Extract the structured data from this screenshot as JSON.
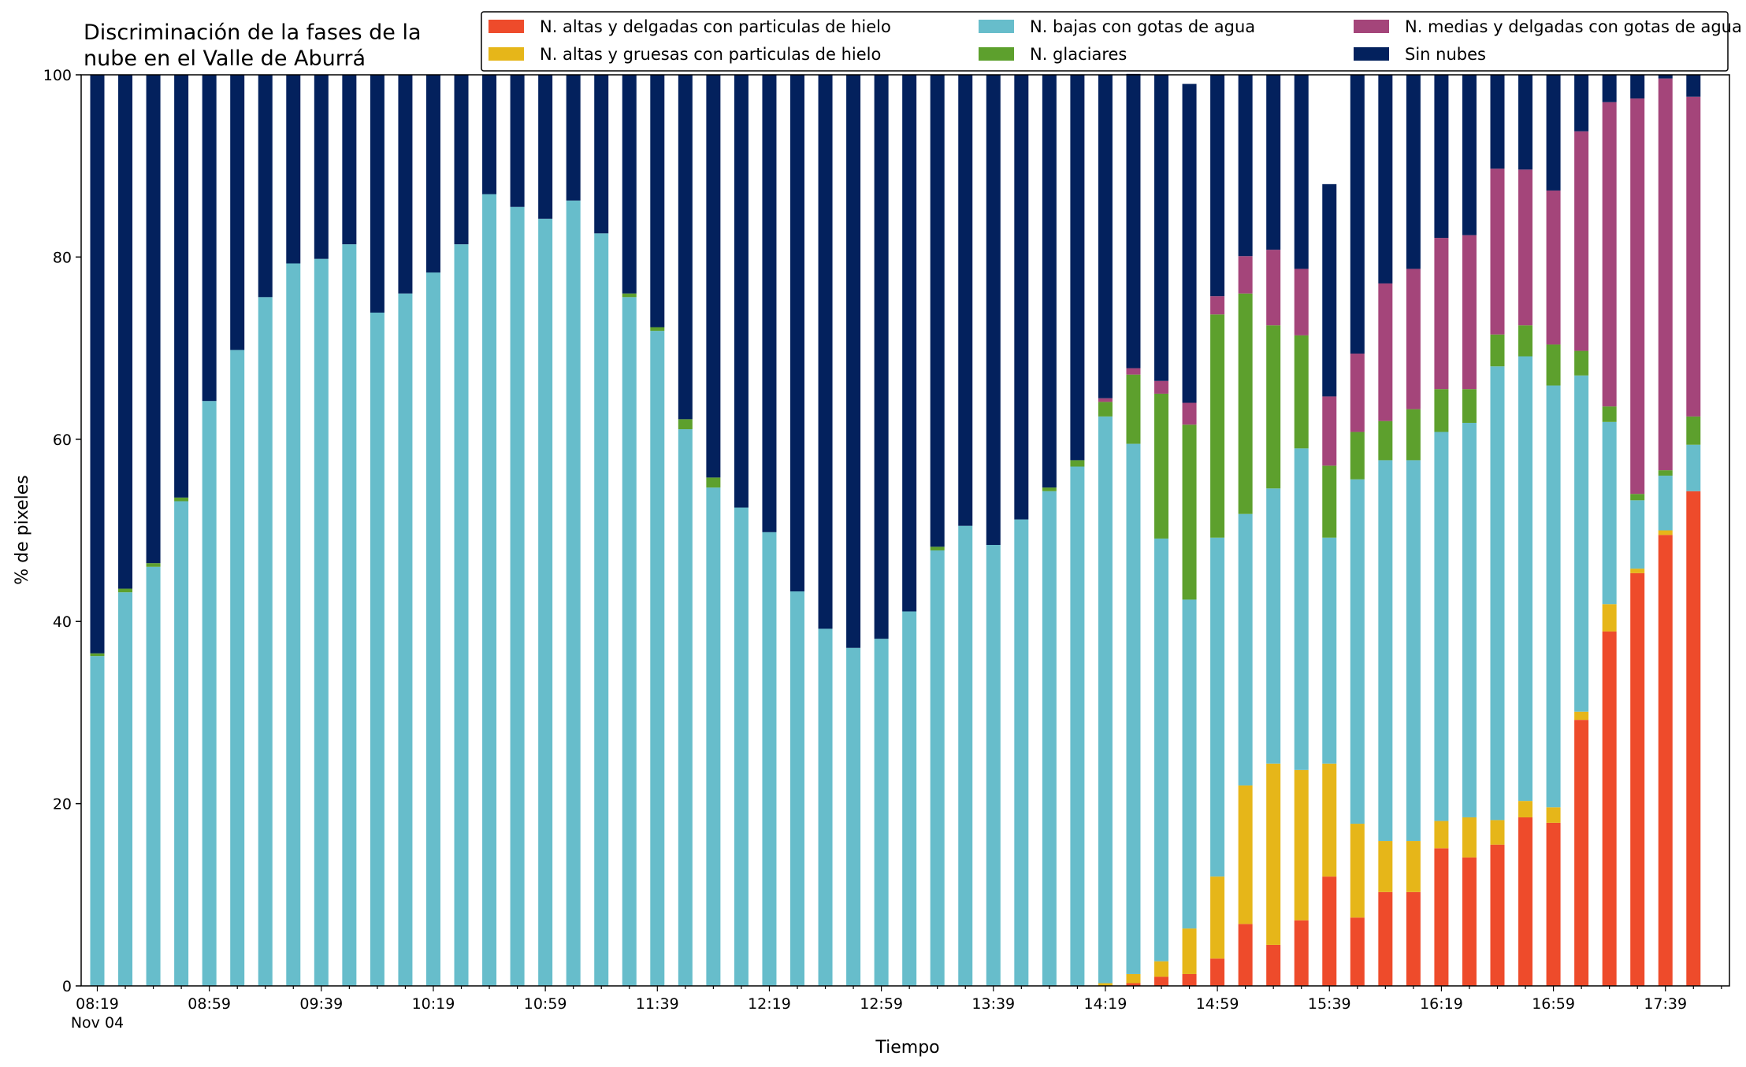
{
  "chart_data": {
    "type": "bar",
    "stacked": true,
    "title_lines": [
      "Discriminación de la fases de la",
      "nube en el Valle de Aburrá"
    ],
    "xlabel": "Tiempo",
    "ylabel": "% de pixeles",
    "ylim": [
      0,
      100
    ],
    "yticks": [
      0,
      20,
      40,
      60,
      80,
      100
    ],
    "grid": false,
    "legend_position": "top-right",
    "time_start": "08:19",
    "interval_minutes": 10,
    "x_tick_labels": [
      {
        "index": 0,
        "label": "08:19",
        "sublabel": "Nov 04"
      },
      {
        "index": 4,
        "label": "08:59"
      },
      {
        "index": 8,
        "label": "09:39"
      },
      {
        "index": 12,
        "label": "10:19"
      },
      {
        "index": 16,
        "label": "10:59"
      },
      {
        "index": 20,
        "label": "11:39"
      },
      {
        "index": 24,
        "label": "12:19"
      },
      {
        "index": 28,
        "label": "12:59"
      },
      {
        "index": 32,
        "label": "13:39"
      },
      {
        "index": 36,
        "label": "14:19"
      },
      {
        "index": 40,
        "label": "14:59"
      },
      {
        "index": 44,
        "label": "15:39"
      },
      {
        "index": 48,
        "label": "16:19"
      },
      {
        "index": 52,
        "label": "16:59"
      },
      {
        "index": 56,
        "label": "17:39"
      }
    ],
    "series": [
      {
        "name": "N. altas y delgadas con particulas de hielo",
        "color": "#ee4b2b",
        "values": [
          0,
          0,
          0,
          0,
          0,
          0,
          0,
          0,
          0,
          0,
          0,
          0,
          0,
          0,
          0,
          0,
          0,
          0,
          0,
          0,
          0,
          0,
          0,
          0,
          0,
          0,
          0,
          0,
          0,
          0,
          0,
          0,
          0,
          0,
          0,
          0,
          0,
          0.3,
          1,
          1.3,
          3,
          6.8,
          4.5,
          7.2,
          12,
          7.5,
          10.3,
          10.3,
          15.1,
          14.1,
          15.5,
          18.5,
          17.9,
          29.2,
          38.9,
          45.3,
          49.5,
          54.3
        ]
      },
      {
        "name": "N. altas y gruesas con particulas de hielo",
        "color": "#e6b619",
        "values": [
          0,
          0,
          0,
          0,
          0,
          0,
          0,
          0,
          0,
          0,
          0,
          0,
          0,
          0,
          0,
          0,
          0,
          0,
          0,
          0,
          0,
          0,
          0,
          0,
          0,
          0,
          0,
          0,
          0,
          0,
          0,
          0,
          0,
          0,
          0,
          0,
          0.3,
          1,
          1.7,
          5,
          9,
          15.2,
          19.9,
          16.5,
          12.4,
          10.3,
          5.6,
          5.6,
          3,
          4.4,
          2.7,
          1.8,
          1.7,
          0.9,
          3,
          0.5,
          0.5,
          0
        ]
      },
      {
        "name": "N. bajas con gotas de agua",
        "color": "#67bdcb",
        "values": [
          36.2,
          43.2,
          46,
          53.2,
          64.2,
          69.8,
          75.6,
          79.3,
          79.8,
          81.4,
          73.9,
          76,
          78.3,
          81.4,
          86.9,
          85.5,
          84.2,
          86.2,
          82.6,
          75.6,
          71.9,
          61.1,
          54.7,
          52.5,
          49.8,
          43.3,
          39.2,
          37.1,
          38.1,
          41.1,
          47.8,
          50.5,
          48.4,
          51.2,
          54.3,
          57,
          62.2,
          58.2,
          46.4,
          36.1,
          37.2,
          29.8,
          30.2,
          35.3,
          24.8,
          37.8,
          41.8,
          41.8,
          42.7,
          43.3,
          49.8,
          48.8,
          46.3,
          36.9,
          20,
          7.5,
          6,
          5.1
        ]
      },
      {
        "name": "N. glaciares",
        "color": "#5da02d",
        "values": [
          0.3,
          0.4,
          0.4,
          0.4,
          0,
          0,
          0,
          0,
          0,
          0,
          0,
          0,
          0,
          0,
          0,
          0,
          0,
          0,
          0,
          0.4,
          0.4,
          1.1,
          1.1,
          0,
          0,
          0,
          0,
          0,
          0,
          0,
          0.4,
          0,
          0,
          0,
          0.4,
          0.7,
          1.6,
          7.6,
          15.9,
          19.2,
          24.5,
          24.2,
          17.9,
          12.4,
          7.9,
          5.2,
          4.3,
          5.6,
          4.7,
          3.7,
          3.5,
          3.4,
          4.5,
          2.7,
          1.7,
          0.7,
          0.6,
          3.1
        ]
      },
      {
        "name": "N. medias y delgadas con gotas de agua",
        "color": "#a4457a",
        "values": [
          0,
          0,
          0,
          0,
          0,
          0,
          0,
          0,
          0,
          0,
          0,
          0,
          0,
          0,
          0,
          0,
          0,
          0,
          0,
          0,
          0,
          0,
          0,
          0,
          0,
          0,
          0,
          0,
          0,
          0,
          0,
          0,
          0,
          0,
          0,
          0,
          0.4,
          0.7,
          1.4,
          2.4,
          2,
          4.1,
          8.3,
          7.3,
          7.6,
          8.6,
          15.1,
          15.4,
          16.6,
          16.9,
          18.2,
          17.1,
          16.9,
          24.1,
          33.4,
          43.4,
          43,
          35.1
        ]
      },
      {
        "name": "Sin nubes",
        "color": "#03215d",
        "values": [
          63.5,
          56.4,
          53.6,
          46.4,
          35.8,
          30.2,
          24.4,
          20.7,
          20.2,
          18.6,
          26.1,
          24,
          21.7,
          18.6,
          13.1,
          14.5,
          15.8,
          13.8,
          17.4,
          24,
          27.7,
          37.8,
          44.2,
          47.5,
          50.2,
          56.7,
          60.8,
          62.9,
          61.9,
          58.9,
          51.8,
          49.5,
          51.6,
          48.8,
          45.3,
          42.3,
          35.5,
          32.3,
          33.6,
          35,
          24.3,
          19.9,
          19.2,
          21.3,
          23.3,
          30.6,
          22.9,
          21.3,
          17.9,
          17.6,
          10.3,
          10.4,
          12.7,
          6.2,
          3,
          2.6,
          0.4,
          2.4
        ]
      }
    ]
  }
}
